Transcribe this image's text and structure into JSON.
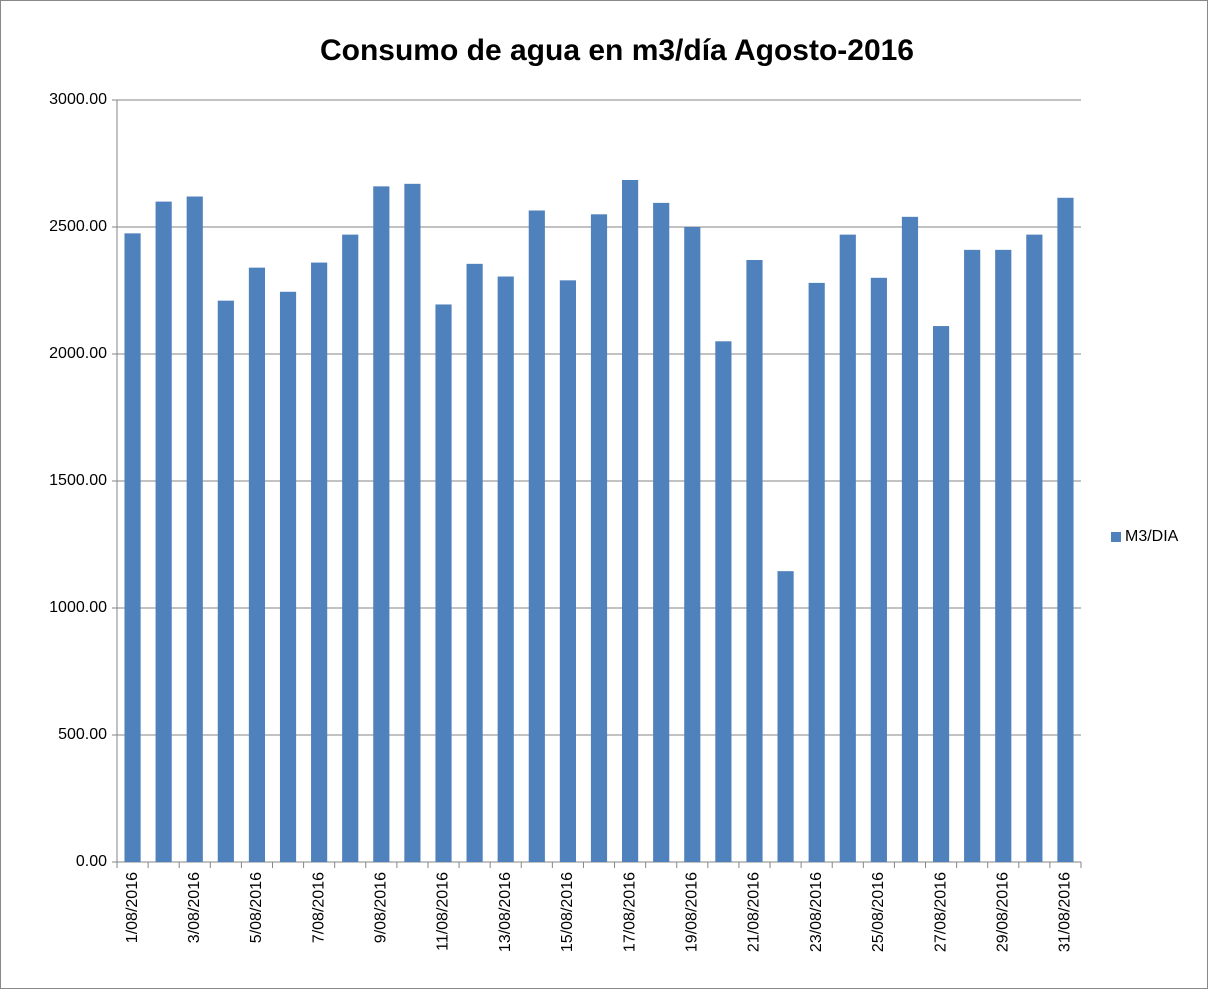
{
  "chart_data": {
    "type": "bar",
    "title": "Consumo de agua en m3/día Agosto-2016",
    "categories": [
      "1/08/2016",
      null,
      "3/08/2016",
      null,
      "5/08/2016",
      null,
      "7/08/2016",
      null,
      "9/08/2016",
      null,
      "11/08/2016",
      null,
      "13/08/2016",
      null,
      "15/08/2016",
      null,
      "17/08/2016",
      null,
      "19/08/2016",
      null,
      "21/08/2016",
      null,
      "23/08/2016",
      null,
      "25/08/2016",
      null,
      "27/08/2016",
      null,
      "29/08/2016",
      null,
      "31/08/2016"
    ],
    "series": [
      {
        "name": "M3/DIA",
        "color": "#4f81bd",
        "values": [
          2475,
          2600,
          2620,
          2210,
          2340,
          2245,
          2360,
          2470,
          2660,
          2670,
          2195,
          2355,
          2305,
          2565,
          2290,
          2550,
          2685,
          2595,
          2500,
          2050,
          2370,
          1145,
          2280,
          2470,
          2300,
          2540,
          2110,
          2410,
          2410,
          2470,
          2615
        ]
      }
    ],
    "ylim": [
      0,
      3000
    ],
    "yticks": [
      {
        "value": 0,
        "label": "0.00"
      },
      {
        "value": 500,
        "label": "500.00"
      },
      {
        "value": 1000,
        "label": "1000.00"
      },
      {
        "value": 1500,
        "label": "1500.00"
      },
      {
        "value": 2000,
        "label": "2000.00"
      },
      {
        "value": 2500,
        "label": "2500.00"
      },
      {
        "value": 3000,
        "label": "3000.00"
      }
    ],
    "grid": true,
    "legend": "right"
  }
}
